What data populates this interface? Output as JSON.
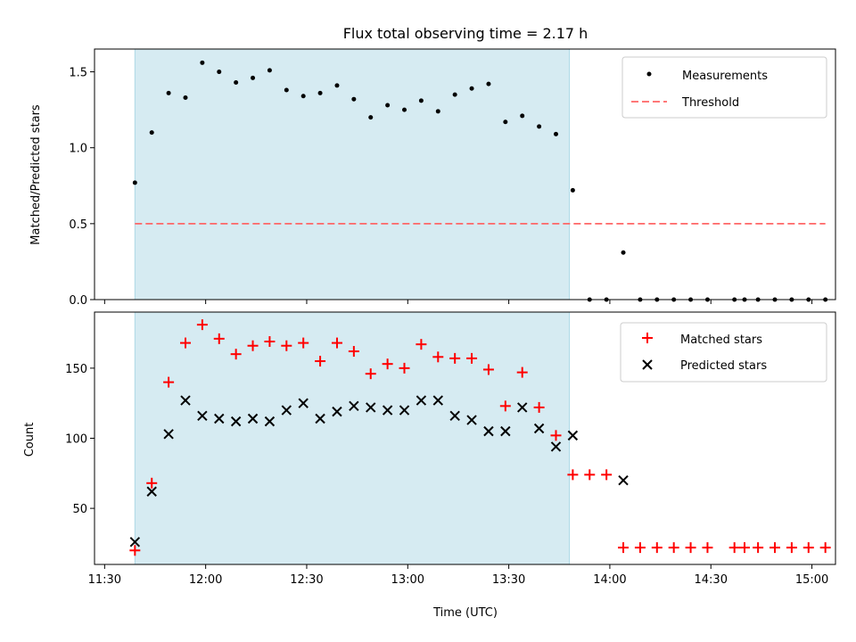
{
  "figure_title": "Flux total observing time = 2.17 h",
  "colors": {
    "shade": "#add8e6",
    "threshold": "#ff6666",
    "matched": "#ff0000",
    "predicted": "#000000",
    "measurement": "#000000"
  },
  "chart_data": [
    {
      "type": "scatter",
      "title": "Flux total observing time = 2.17 h",
      "xlabel": "",
      "ylabel": "Matched/Predicted stars",
      "xlim": [
        "11:27",
        "15:07"
      ],
      "ylim": [
        0,
        1.65
      ],
      "yticks": [
        0.0,
        0.5,
        1.0,
        1.5
      ],
      "ytick_labels": [
        "0.0",
        "0.5",
        "1.0",
        "1.5"
      ],
      "shaded_span": [
        "11:39",
        "13:48"
      ],
      "legend": {
        "placement": "top-right",
        "entries": [
          "Measurements",
          "Threshold"
        ]
      },
      "threshold": {
        "name": "Threshold",
        "y": 0.5,
        "x_range": [
          "11:39",
          "15:04"
        ]
      },
      "series": [
        {
          "name": "Measurements",
          "x": [
            "11:39",
            "11:44",
            "11:49",
            "11:54",
            "11:59",
            "12:04",
            "12:09",
            "12:14",
            "12:19",
            "12:24",
            "12:29",
            "12:34",
            "12:39",
            "12:44",
            "12:49",
            "12:54",
            "12:59",
            "13:04",
            "13:09",
            "13:14",
            "13:19",
            "13:24",
            "13:29",
            "13:34",
            "13:39",
            "13:44",
            "13:49",
            "13:54",
            "13:59",
            "14:04",
            "14:09",
            "14:14",
            "14:19",
            "14:24",
            "14:29",
            "14:37",
            "14:40",
            "14:44",
            "14:49",
            "14:54",
            "14:59",
            "15:04"
          ],
          "y": [
            0.77,
            1.1,
            1.36,
            1.33,
            1.56,
            1.5,
            1.43,
            1.46,
            1.51,
            1.38,
            1.34,
            1.36,
            1.41,
            1.32,
            1.2,
            1.28,
            1.25,
            1.31,
            1.24,
            1.35,
            1.39,
            1.42,
            1.17,
            1.21,
            1.14,
            1.09,
            0.72,
            0.0,
            0.0,
            0.31,
            0.0,
            0.0,
            0.0,
            0.0,
            0.0,
            0.0,
            0.0,
            0.0,
            0.0,
            0.0,
            0.0,
            0.0
          ]
        }
      ]
    },
    {
      "type": "scatter",
      "title": "",
      "xlabel": "Time (UTC)",
      "ylabel": "Count",
      "xlim": [
        "11:27",
        "15:07"
      ],
      "ylim": [
        10,
        190
      ],
      "yticks": [
        50,
        100,
        150
      ],
      "ytick_labels": [
        "50",
        "100",
        "150"
      ],
      "xticks": [
        "11:30",
        "12:00",
        "12:30",
        "13:00",
        "13:30",
        "14:00",
        "14:30",
        "15:00"
      ],
      "shaded_span": [
        "11:39",
        "13:48"
      ],
      "legend": {
        "placement": "top-right",
        "entries": [
          "Matched stars",
          "Predicted stars"
        ]
      },
      "series": [
        {
          "name": "Matched stars",
          "x": [
            "11:39",
            "11:44",
            "11:49",
            "11:54",
            "11:59",
            "12:04",
            "12:09",
            "12:14",
            "12:19",
            "12:24",
            "12:29",
            "12:34",
            "12:39",
            "12:44",
            "12:49",
            "12:54",
            "12:59",
            "13:04",
            "13:09",
            "13:14",
            "13:19",
            "13:24",
            "13:29",
            "13:34",
            "13:39",
            "13:44",
            "13:49",
            "13:54",
            "13:59",
            "14:04",
            "14:09",
            "14:14",
            "14:19",
            "14:24",
            "14:29",
            "14:37",
            "14:40",
            "14:44",
            "14:49",
            "14:54",
            "14:59",
            "15:04"
          ],
          "y": [
            20,
            68,
            140,
            168,
            181,
            171,
            160,
            166,
            169,
            166,
            168,
            155,
            168,
            162,
            146,
            153,
            150,
            167,
            158,
            157,
            157,
            149,
            123,
            147,
            122,
            102,
            74,
            74,
            74,
            22,
            22,
            22,
            22,
            22,
            22,
            22,
            22,
            22,
            22,
            22,
            22,
            22
          ]
        },
        {
          "name": "Predicted stars",
          "x": [
            "11:39",
            "11:44",
            "11:49",
            "11:54",
            "11:59",
            "12:04",
            "12:09",
            "12:14",
            "12:19",
            "12:24",
            "12:29",
            "12:34",
            "12:39",
            "12:44",
            "12:49",
            "12:54",
            "12:59",
            "13:04",
            "13:09",
            "13:14",
            "13:19",
            "13:24",
            "13:29",
            "13:34",
            "13:39",
            "13:44",
            "13:49",
            "14:04"
          ],
          "y": [
            26,
            62,
            103,
            127,
            116,
            114,
            112,
            114,
            112,
            120,
            125,
            114,
            119,
            123,
            122,
            120,
            120,
            127,
            127,
            116,
            113,
            105,
            105,
            122,
            107,
            94,
            102,
            70
          ]
        }
      ]
    }
  ]
}
